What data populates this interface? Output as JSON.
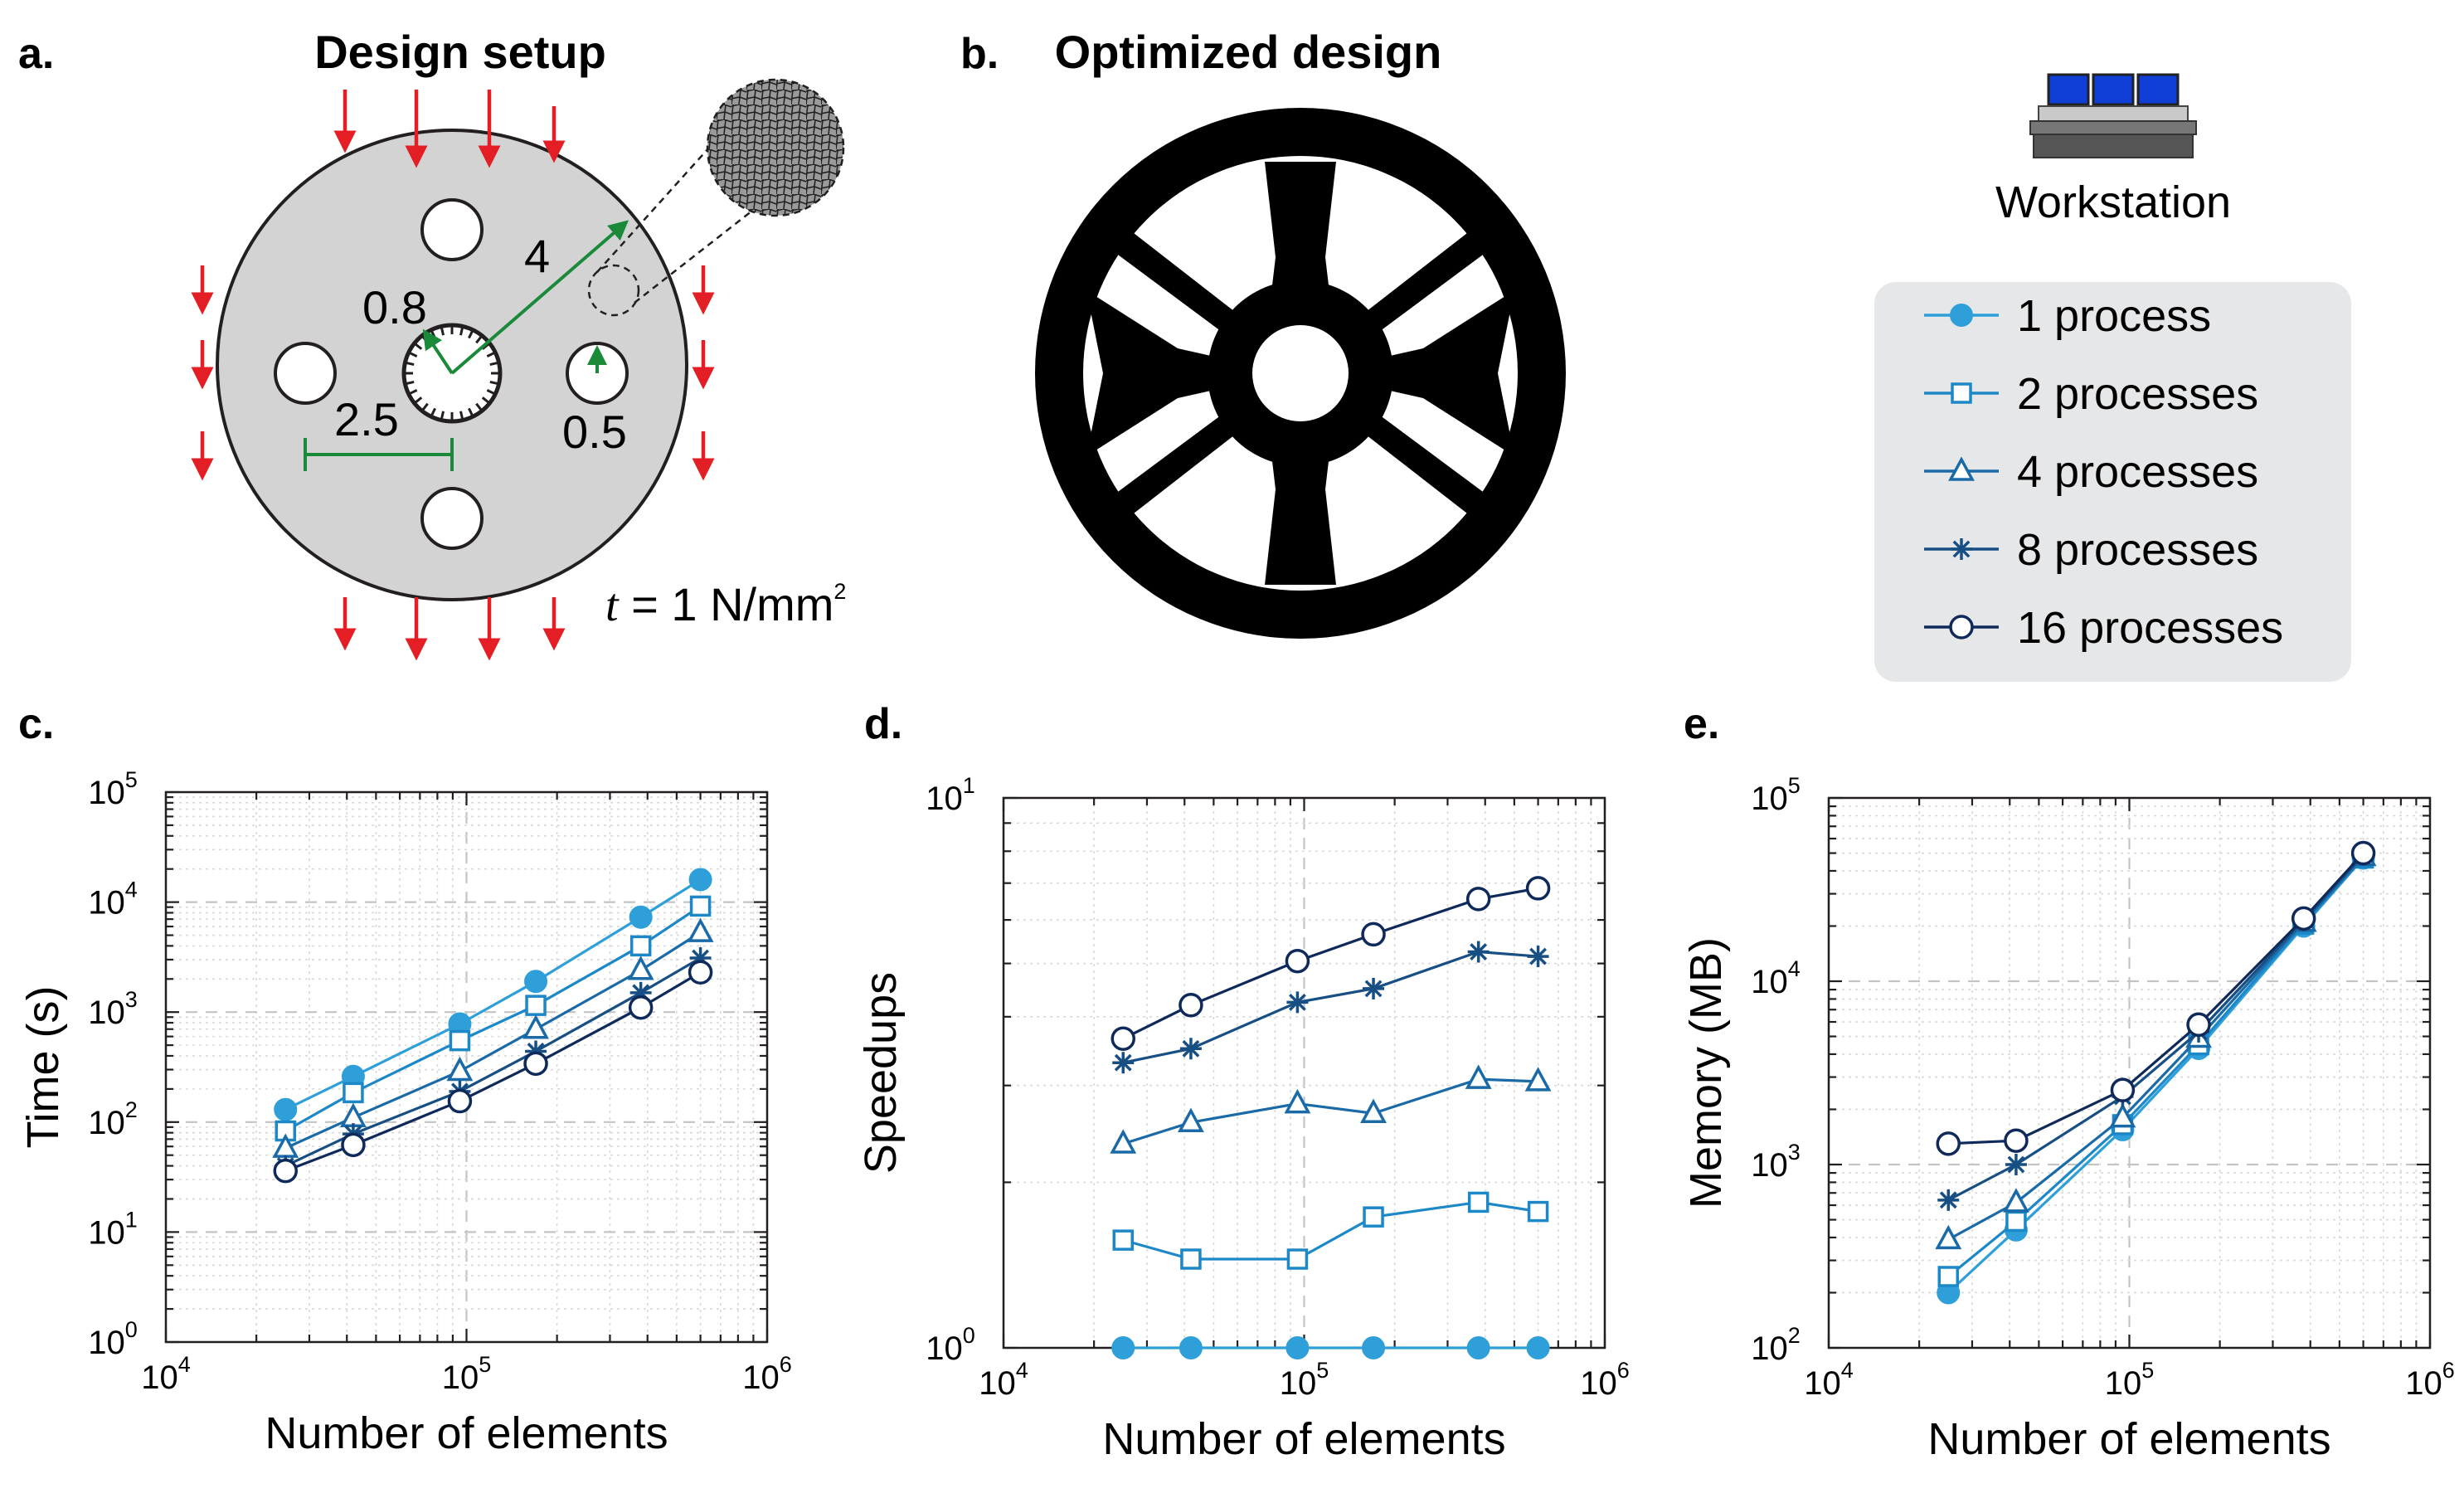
{
  "panels": {
    "a": {
      "letter": "a.",
      "title": "Design setup",
      "dims": {
        "r_outer": "4",
        "r_inner": "0.8",
        "r_hole": "0.5",
        "spacing": "2.5"
      },
      "traction": {
        "symbol": "t",
        "text": " = 1 N/mm",
        "exp": "2"
      }
    },
    "b": {
      "letter": "b.",
      "title": "Optimized design"
    },
    "c": {
      "letter": "c."
    },
    "d": {
      "letter": "d."
    },
    "e": {
      "letter": "e."
    }
  },
  "workstation": {
    "label": "Workstation",
    "icon": "workstation-icon"
  },
  "colors": {
    "s1": "#2e9fd8",
    "s2": "#1d88c8",
    "s4": "#1a6aa8",
    "s8": "#174f84",
    "s16": "#0f2a5a",
    "arrow": "#e31e24",
    "dim": "#1a8a3a",
    "part": "#d3d3d3",
    "legend_bg": "#e6e7e9"
  },
  "legend": [
    {
      "label": "1 process",
      "marker": "filled-circle"
    },
    {
      "label": "2 processes",
      "marker": "square"
    },
    {
      "label": "4 processes",
      "marker": "triangle"
    },
    {
      "label": "8 processes",
      "marker": "asterisk"
    },
    {
      "label": "16 processes",
      "marker": "circle"
    }
  ],
  "chart_data": [
    {
      "type": "line",
      "panel": "c",
      "xlabel": "Number of elements",
      "ylabel": "Time (s)",
      "xscale": "log",
      "yscale": "log",
      "xlim": [
        10000,
        1000000
      ],
      "ylim": [
        1,
        100000
      ],
      "grid": true,
      "x": [
        25000,
        42000,
        95000,
        170000,
        380000,
        600000
      ],
      "series": [
        {
          "name": "1 process",
          "values": [
            130,
            260,
            780,
            1900,
            7300,
            16000
          ]
        },
        {
          "name": "2 processes",
          "values": [
            83,
            185,
            550,
            1150,
            4000,
            9200
          ]
        },
        {
          "name": "4 processes",
          "values": [
            58,
            110,
            290,
            700,
            2400,
            5300
          ]
        },
        {
          "name": "8 processes",
          "values": [
            40,
            78,
            190,
            440,
            1500,
            3100
          ]
        },
        {
          "name": "16 processes",
          "values": [
            36,
            62,
            155,
            340,
            1100,
            2300
          ]
        }
      ]
    },
    {
      "type": "line",
      "panel": "d",
      "xlabel": "Number of elements",
      "ylabel": "Speedups",
      "xscale": "log",
      "yscale": "log",
      "xlim": [
        10000,
        1000000
      ],
      "ylim": [
        1,
        10
      ],
      "grid": true,
      "x": [
        25000,
        42000,
        95000,
        170000,
        380000,
        600000
      ],
      "series": [
        {
          "name": "1 process",
          "values": [
            1,
            1,
            1,
            1,
            1,
            1
          ]
        },
        {
          "name": "2 processes",
          "values": [
            1.57,
            1.45,
            1.45,
            1.73,
            1.84,
            1.77
          ]
        },
        {
          "name": "4 processes",
          "values": [
            2.35,
            2.57,
            2.78,
            2.67,
            3.08,
            3.05
          ]
        },
        {
          "name": "8 processes",
          "values": [
            3.3,
            3.5,
            4.25,
            4.5,
            5.25,
            5.15
          ]
        },
        {
          "name": "16 processes",
          "values": [
            3.65,
            4.2,
            5.05,
            5.65,
            6.55,
            6.85
          ]
        }
      ]
    },
    {
      "type": "line",
      "panel": "e",
      "xlabel": "Number of elements",
      "ylabel": "Memory (MB)",
      "xscale": "log",
      "yscale": "log",
      "xlim": [
        10000,
        1000000
      ],
      "ylim": [
        100,
        100000
      ],
      "grid": true,
      "x": [
        25000,
        42000,
        95000,
        170000,
        380000,
        600000
      ],
      "series": [
        {
          "name": "1 process",
          "values": [
            200,
            440,
            1550,
            4300,
            20000,
            47000
          ]
        },
        {
          "name": "2 processes",
          "values": [
            245,
            490,
            1650,
            4500,
            20500,
            47000
          ]
        },
        {
          "name": "4 processes",
          "values": [
            390,
            620,
            1800,
            4900,
            21000,
            48000
          ]
        },
        {
          "name": "8 processes",
          "values": [
            640,
            1000,
            2350,
            5300,
            21500,
            49000
          ]
        },
        {
          "name": "16 processes",
          "values": [
            1300,
            1350,
            2550,
            5800,
            22000,
            50000
          ]
        }
      ]
    }
  ]
}
